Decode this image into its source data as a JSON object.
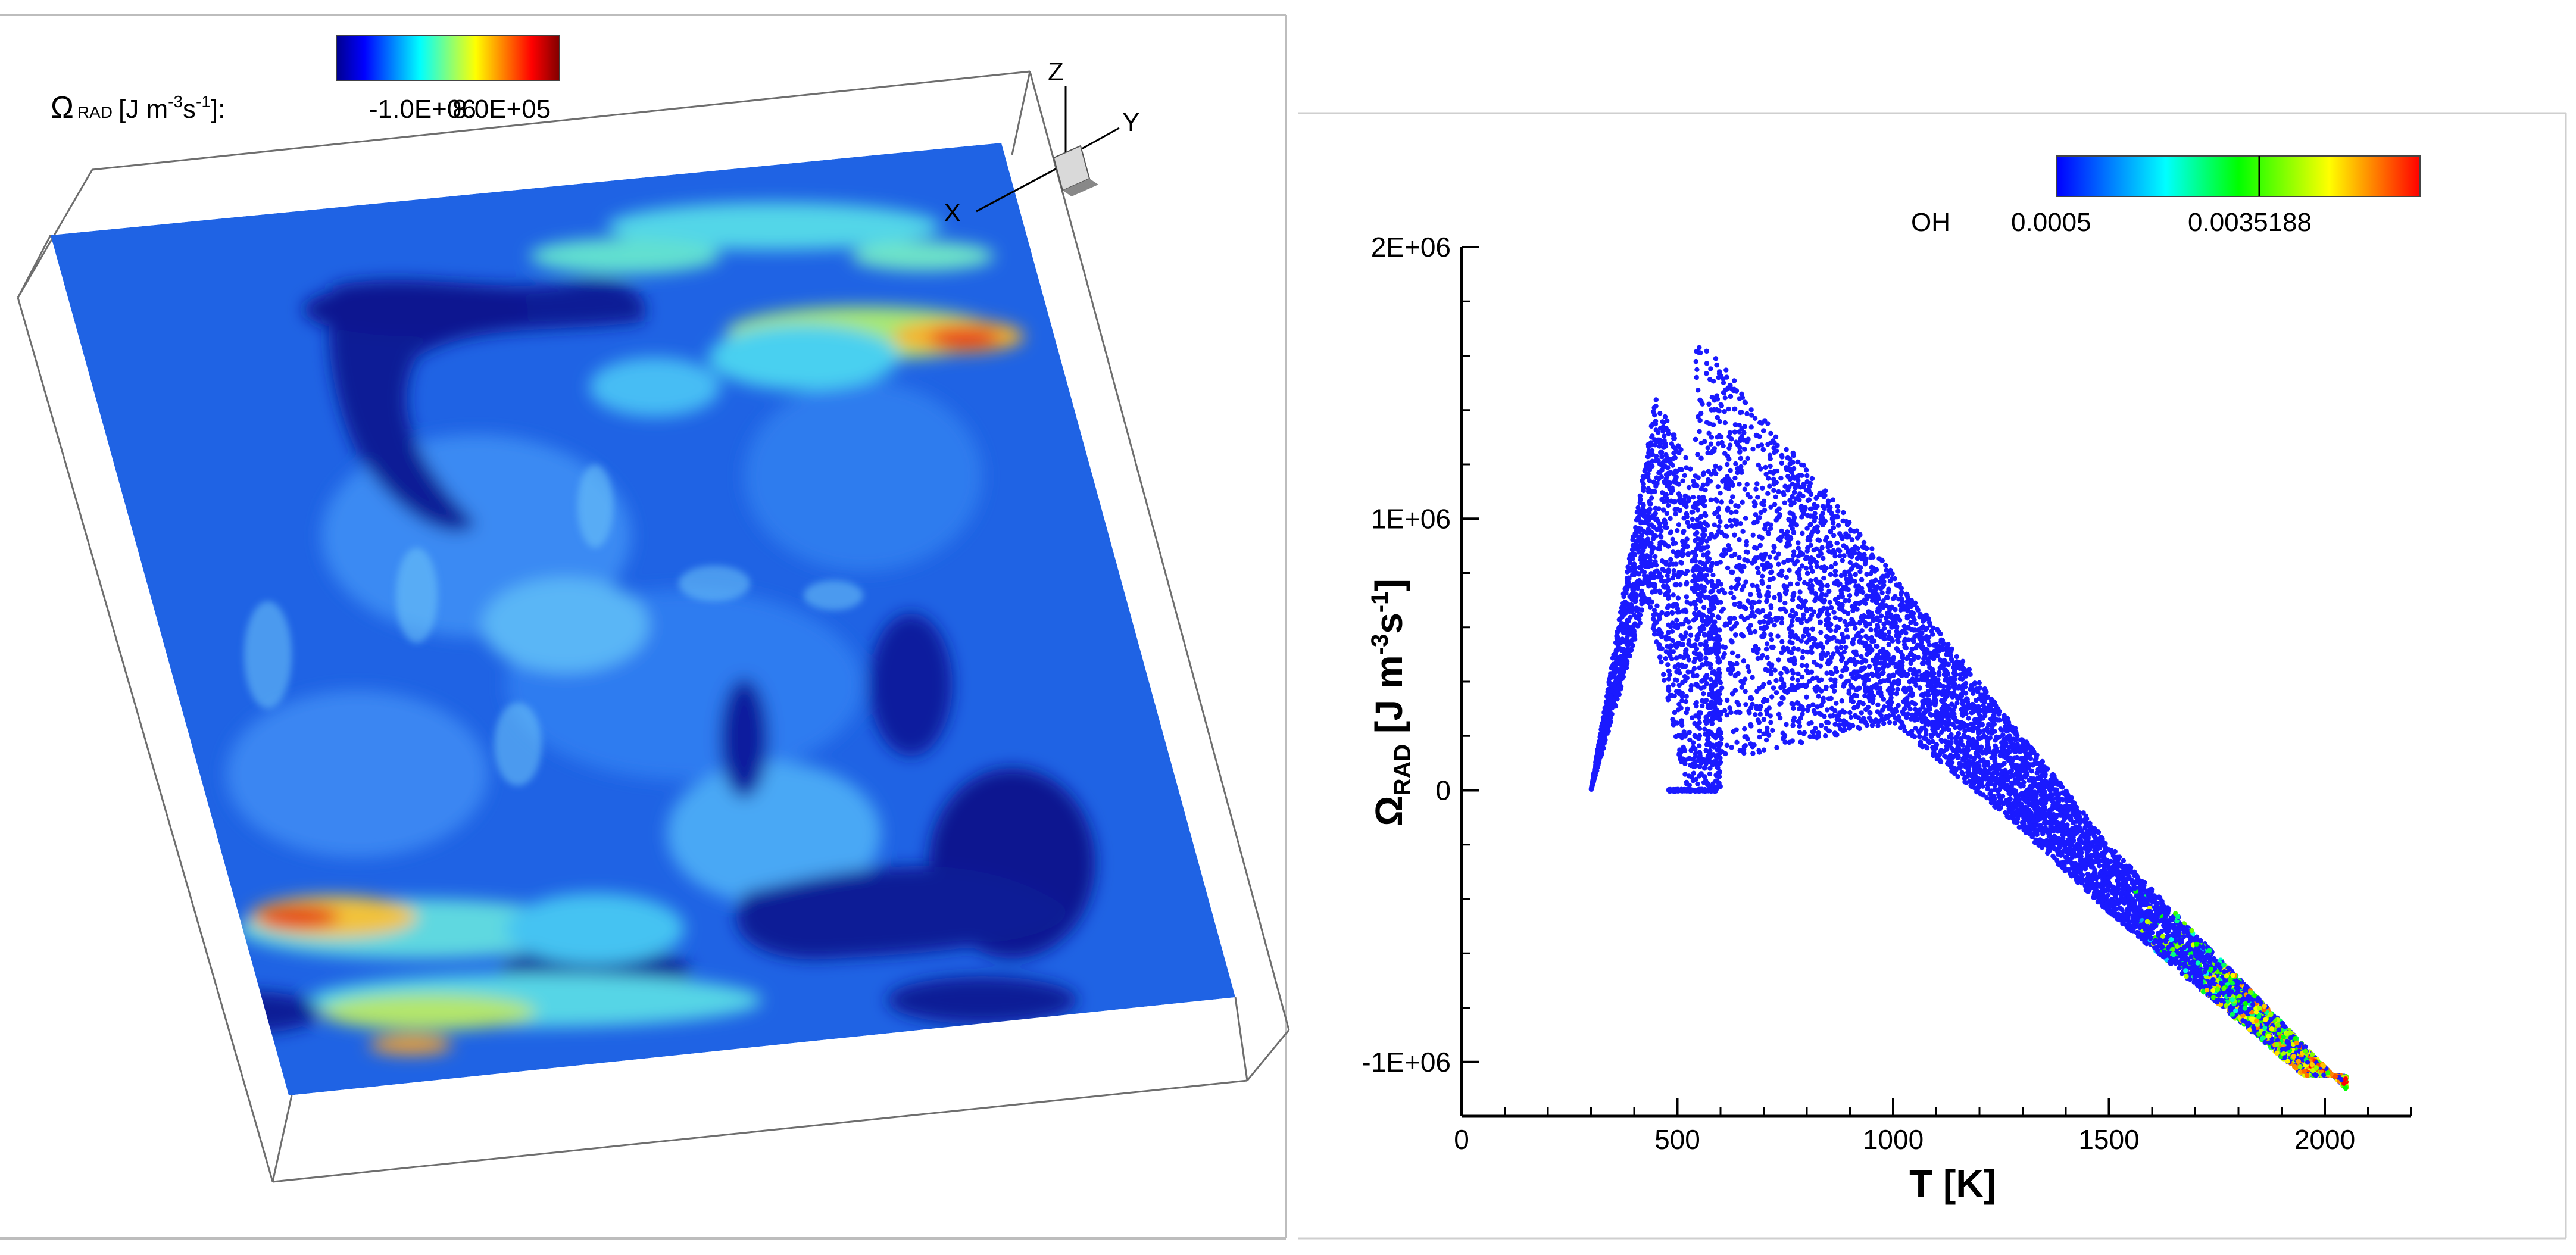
{
  "chart_data": [
    {
      "type": "heatmap",
      "panel": "left",
      "colorbar": {
        "label_symbol": "Ω",
        "label_subscript": "RAD",
        "label_units_pre": "[J m",
        "label_units_exp1": "-3",
        "label_units_mid": "s",
        "label_units_exp2": "-1",
        "label_units_post": "]:",
        "min_label": "-1.0E+06",
        "max_label": "8.0E+05",
        "min": -1000000,
        "max": 800000,
        "colormap": "jet"
      },
      "axes_triad": {
        "x": "X",
        "y": "Y",
        "z": "Z"
      }
    },
    {
      "type": "scatter",
      "panel": "right",
      "xlabel": "T [K]",
      "ylabel": {
        "symbol": "Ω",
        "subscript": "RAD",
        "units_pre": " [J m",
        "exp1": "-3",
        "units_mid": "s",
        "exp2": "-1",
        "units_post": "]"
      },
      "xlim": [
        0,
        2200
      ],
      "ylim": [
        -1200000,
        2000000
      ],
      "x_ticks": [
        0,
        500,
        1000,
        1500,
        2000
      ],
      "x_tick_labels": [
        "0",
        "500",
        "1000",
        "1500",
        "2000"
      ],
      "y_ticks": [
        -1000000,
        0,
        1000000,
        2000000
      ],
      "y_tick_labels": [
        "-1E+06",
        "0",
        "1E+06",
        "2E+06"
      ],
      "colorbar": {
        "label": "OH",
        "min_label": "0.0005",
        "mid_label": "0.0035188",
        "min": 0.0005,
        "mid": 0.0035188,
        "max": 0.0055,
        "colormap": "jet"
      },
      "distribution": {
        "plume_upper_edge": [
          [
            300,
            0
          ],
          [
            450,
            1700000
          ],
          [
            560,
            1650000
          ],
          [
            1000,
            800000
          ],
          [
            1500,
            -200000
          ],
          [
            2050,
            -1100000
          ]
        ],
        "plume_lower_edge": [
          [
            300,
            0
          ],
          [
            1000,
            250000
          ],
          [
            1300,
            -150000
          ],
          [
            1500,
            -450000
          ],
          [
            1950,
            -1050000
          ]
        ],
        "side_branch_upper": [
          [
            300,
            0
          ],
          [
            450,
            1450000
          ],
          [
            560,
            1100000
          ],
          [
            600,
            600000
          ]
        ],
        "side_branch_lower": [
          [
            300,
            0
          ],
          [
            430,
            700000
          ],
          [
            520,
            0
          ]
        ],
        "zero_band": [
          [
            480,
            0
          ],
          [
            590,
            0
          ]
        ],
        "oh_high_region_start_T": 1550
      }
    }
  ]
}
